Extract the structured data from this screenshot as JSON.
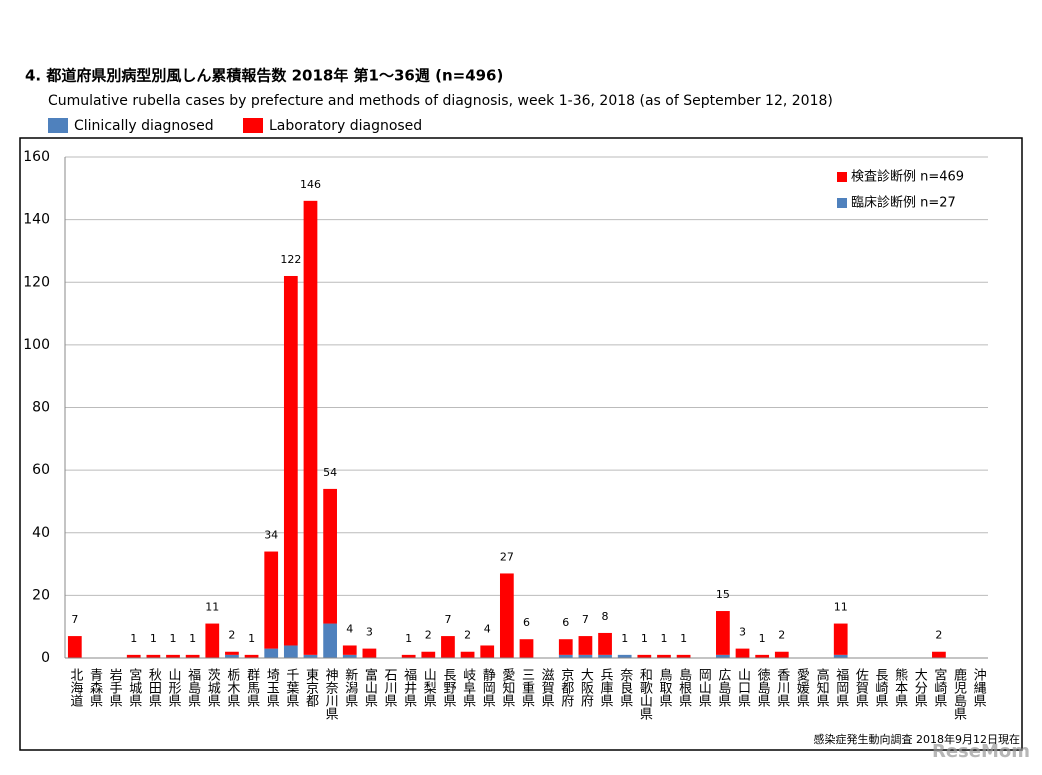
{
  "chart_data": {
    "type": "stacked_bar",
    "title": "4. 都道府県別病型別風しん累積報告数  2018年 第1～36週 (n=496)",
    "subtitle": "Cumulative rubella cases by prefecture and methods of diagnosis, week 1-36, 2018 (as of September 12, 2018)",
    "categories": [
      "北海道",
      "青森県",
      "岩手県",
      "宮城県",
      "秋田県",
      "山形県",
      "福島県",
      "茨城県",
      "栃木県",
      "群馬県",
      "埼玉県",
      "千葉県",
      "東京都",
      "神奈川県",
      "新潟県",
      "富山県",
      "石川県",
      "福井県",
      "山梨県",
      "長野県",
      "岐阜県",
      "静岡県",
      "愛知県",
      "三重県",
      "滋賀県",
      "京都府",
      "大阪府",
      "兵庫県",
      "奈良県",
      "和歌山県",
      "鳥取県",
      "島根県",
      "岡山県",
      "広島県",
      "山口県",
      "徳島県",
      "香川県",
      "愛媛県",
      "高知県",
      "福岡県",
      "佐賀県",
      "長崎県",
      "熊本県",
      "大分県",
      "宮崎県",
      "鹿児島県",
      "沖縄県"
    ],
    "series": [
      {
        "name": "Clinically diagnosed",
        "color": "#4f81bd",
        "values": [
          0,
          0,
          0,
          0,
          0,
          0,
          0,
          0,
          1,
          0,
          3,
          4,
          1,
          11,
          1,
          0,
          0,
          0,
          0,
          0,
          0,
          0,
          0,
          0,
          0,
          1,
          1,
          1,
          1,
          0,
          0,
          0,
          0,
          1,
          0,
          0,
          0,
          0,
          0,
          1,
          0,
          0,
          0,
          0,
          0,
          0,
          0
        ]
      },
      {
        "name": "Laboratory diagnosed",
        "color": "#ff0000",
        "values": [
          7,
          0,
          0,
          1,
          1,
          1,
          1,
          11,
          1,
          1,
          31,
          118,
          145,
          43,
          3,
          3,
          0,
          1,
          2,
          7,
          2,
          4,
          27,
          6,
          0,
          5,
          6,
          7,
          0,
          1,
          1,
          1,
          0,
          14,
          3,
          1,
          2,
          0,
          0,
          10,
          0,
          0,
          0,
          0,
          2,
          0,
          0
        ]
      }
    ],
    "totals": [
      7,
      null,
      null,
      1,
      1,
      1,
      1,
      11,
      2,
      1,
      34,
      122,
      146,
      54,
      4,
      3,
      null,
      1,
      2,
      7,
      2,
      4,
      27,
      6,
      null,
      6,
      7,
      8,
      1,
      1,
      1,
      1,
      null,
      15,
      3,
      1,
      2,
      null,
      null,
      11,
      null,
      null,
      null,
      null,
      2,
      null,
      null
    ],
    "inner_legend": [
      "検査診断例 n=469",
      "臨床診断例 n=27"
    ],
    "ylim": [
      0,
      160
    ],
    "yticks": [
      0,
      20,
      40,
      60,
      80,
      100,
      120,
      140,
      160
    ],
    "grid": true,
    "source": "感染症発生動向調査 2018年9月12日現在",
    "watermark": "ReseMom"
  }
}
